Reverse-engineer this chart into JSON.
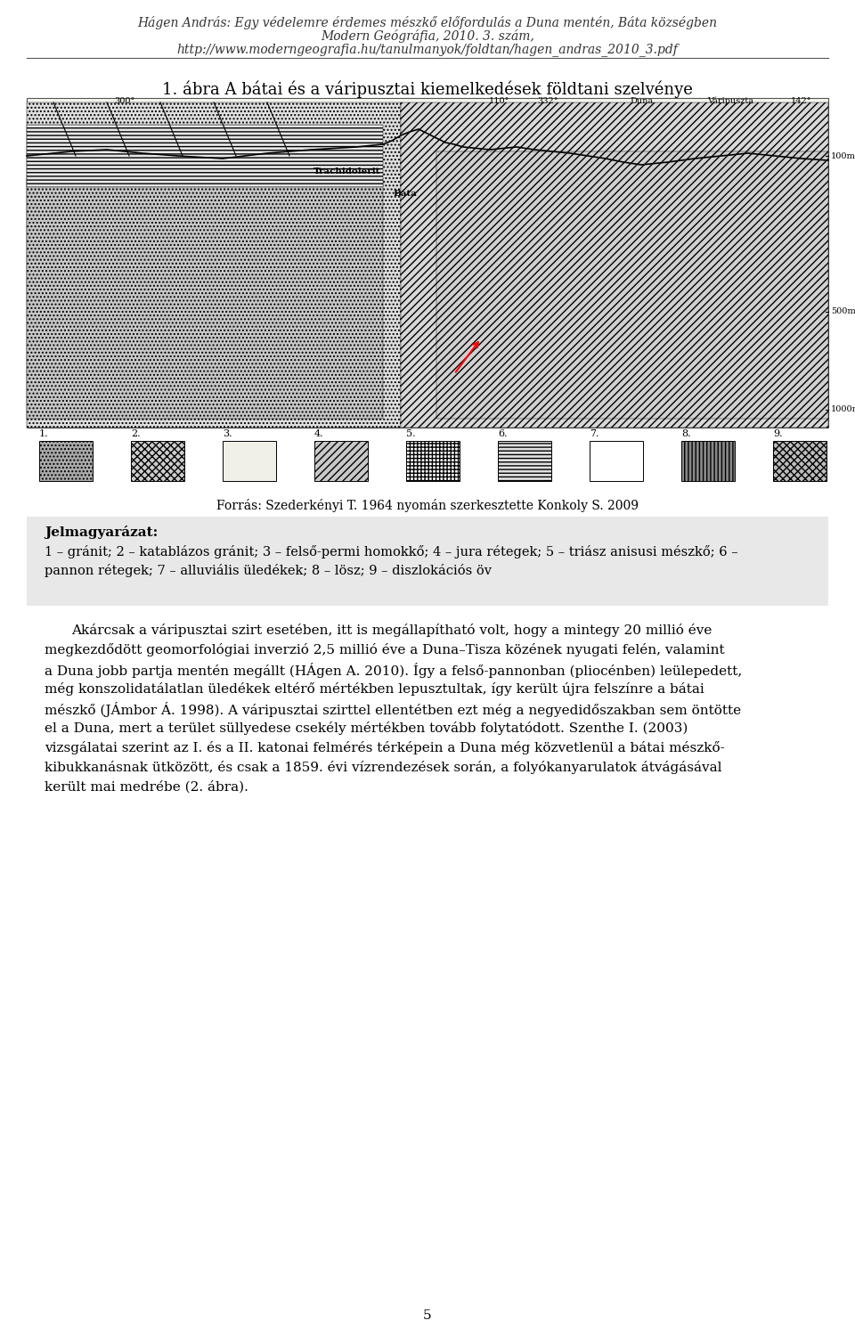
{
  "header_line1": "Hágen András: Egy védelemre érdemes mészkő előfordulás a Duna mentén, Báta községben",
  "header_line2": "Modern Geógráfia, 2010. 3. szám,",
  "header_line3": "http://www.moderngeografia.hu/tanulmanyok/foldtan/hagen_andras_2010_3.pdf",
  "figure_title": "1. ábra A bátai és a váripusztai kiemelkedések földtani szelvénye",
  "source_text": "Forrás: Szederkényi T. 1964 nyomán szerkesztette Konkoly S. 2009",
  "legend_title": "Jelmagyarázat:",
  "legend_text": "1 – gránit; 2 – katablázos gránit; 3 – felső-permi homokkő; 4 – jura rétegek; 5 – triász anisusi mészkő; 6 –\npannon rétegek; 7 – alluviális üledékek; 8 – lösz; 9 – diszlokációs öv",
  "main_text": "Akárcsak a váripusztai szirt esetében, itt is megállapítható volt, hogy a mintegy 20 millió éve megkezdődött geomorfológiai inverzió 2,5 millió éve a Duna–Tisza közének nyugati felén, valamint a Duna jobb partja mentén megállt (HÁgen A. 2010). Így a felső-pannonban (pliocénben) leülepedett, még konszolidatálatlan üledékek eltérő mértékben lepusztultak, így került újra felszínre a bátai mészkő (JÁmbor Á. 1998). A váripusztai szirttel ellentétben ezt még a negyedidőszakban sem öntötte el a Duna, mert a terület süllyedese csekély mértékben tovább folytatódott. Szenthe I. (2003) vizsgálatai szerint az I. és a II. katonai felmérés térképein a Duna még közvetlenül a bátai mészkő-kibukkanásnak ütközött, és csak a 1859. évi vízrendezések során, a folyókanyarulatok átvágásával került mai medrébe (2. ábra).",
  "page_number": "5",
  "bg_color": "#ffffff",
  "text_color": "#000000",
  "header_color": "#333333",
  "legend_bg": "#e8e8e8"
}
